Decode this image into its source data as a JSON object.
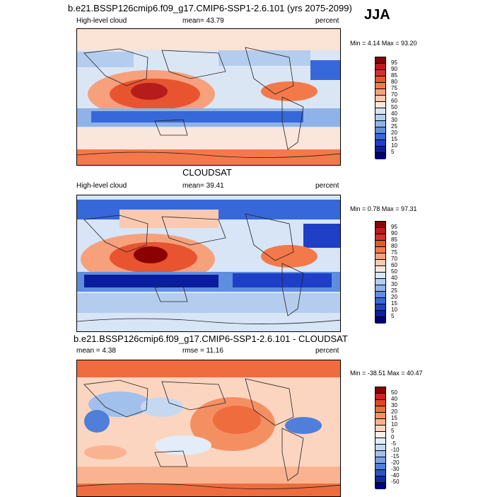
{
  "figure": {
    "season": "JJA",
    "unit": "percent"
  },
  "chart_data": [
    {
      "type": "heatmap",
      "title": "b.e21.BSSP126cmip6.f09_g17.CMIP6-SSP1-2.6.101 (yrs 2075-2099)",
      "variable": "High-level cloud",
      "mean_text": "mean=  43.79",
      "unit": "percent",
      "minmax_text": "Min =   4.14  Max =  93.20",
      "min": 4.14,
      "max": 93.2,
      "mean": 43.79,
      "colorbar_levels": [
        "95",
        "90",
        "85",
        "80",
        "75",
        "70",
        "60",
        "50",
        "40",
        "30",
        "25",
        "20",
        "15",
        "10",
        "5"
      ],
      "colors": [
        "#8b0000",
        "#b71c1c",
        "#d32f2f",
        "#e8542f",
        "#f4794a",
        "#f7a07c",
        "#fbc9b1",
        "#fbe6dc",
        "#d7e5f6",
        "#b4cdef",
        "#8fb3e8",
        "#5f8de0",
        "#3768d9",
        "#1f3fc7",
        "#0a1d9e",
        "#000070"
      ],
      "grid": false
    },
    {
      "type": "heatmap",
      "title": "CLOUDSAT",
      "variable": "High-level cloud",
      "mean_text": "mean=  39.41",
      "unit": "percent",
      "minmax_text": "Min =   0.78  Max =  97.31",
      "min": 0.78,
      "max": 97.31,
      "mean": 39.41,
      "colorbar_levels": [
        "95",
        "90",
        "85",
        "80",
        "75",
        "70",
        "60",
        "50",
        "40",
        "30",
        "25",
        "20",
        "15",
        "10",
        "5"
      ],
      "colors": [
        "#8b0000",
        "#b71c1c",
        "#d32f2f",
        "#e8542f",
        "#f4794a",
        "#f7a07c",
        "#fbc9b1",
        "#fbe6dc",
        "#d7e5f6",
        "#b4cdef",
        "#8fb3e8",
        "#5f8de0",
        "#3768d9",
        "#1f3fc7",
        "#0a1d9e",
        "#000070"
      ],
      "grid": false
    },
    {
      "type": "heatmap",
      "title": "b.e21.BSSP126cmip6.f09_g17.CMIP6-SSP1-2.6.101 - CLOUDSAT",
      "mean_text": "mean =   4.38",
      "rmse_text": "rmse =  11.16",
      "unit": "percent",
      "minmax_text": "Min = -38.51  Max =  40.47",
      "min": -38.51,
      "max": 40.47,
      "mean": 4.38,
      "rmse": 11.16,
      "colorbar_levels": [
        "50",
        "40",
        "30",
        "20",
        "15",
        "10",
        "5",
        "0",
        "-5",
        "-10",
        "-15",
        "-20",
        "-30",
        "-40",
        "-50"
      ],
      "colors": [
        "#8b0000",
        "#c8261d",
        "#e2452a",
        "#ef6c3e",
        "#f48f62",
        "#f9b390",
        "#fcd5c0",
        "#fdefe6",
        "#e3ecf8",
        "#c5d8f2",
        "#a2c0ec",
        "#7aa2e3",
        "#4f7fd9",
        "#2a55c6",
        "#0d2aa3",
        "#00007a"
      ],
      "grid": false
    }
  ]
}
